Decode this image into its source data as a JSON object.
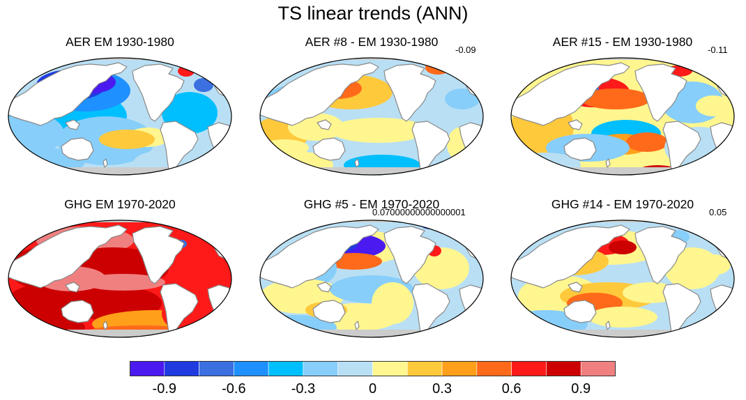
{
  "title": "TS linear trends (ANN)",
  "panels": [
    {
      "title": "AER EM 1930-1980",
      "corr": "",
      "scheme": "aer_em"
    },
    {
      "title": "AER #8 - EM 1930-1980",
      "corr": "-0.09",
      "scheme": "aer8"
    },
    {
      "title": "AER #15 - EM 1930-1980",
      "corr": "-0.11",
      "scheme": "aer15"
    },
    {
      "title": "GHG EM 1970-2020",
      "corr": "",
      "scheme": "ghg_em"
    },
    {
      "title": "GHG #5 - EM 1970-2020",
      "corr": "0.07000000000000001",
      "scheme": "ghg5"
    },
    {
      "title": "GHG #14 - EM 1970-2020",
      "corr": "0.05",
      "scheme": "ghg14"
    }
  ],
  "colorbar": {
    "levels": [
      "-0.9",
      "-0.6",
      "-0.3",
      "0",
      "0.3",
      "0.6",
      "0.9"
    ],
    "colors": [
      "#4a1af0",
      "#1f3be0",
      "#3c6fe0",
      "#1e90ff",
      "#00bfff",
      "#87cefa",
      "#b9dff4",
      "#fff68f",
      "#ffc93c",
      "#ff9f1a",
      "#ff6a1a",
      "#ff1a1a",
      "#cc0000",
      "#f08080"
    ]
  },
  "colors": {
    "land": "#ffffff",
    "ice": "#cccccc",
    "coast": "#888888",
    "frame": "#000000"
  }
}
